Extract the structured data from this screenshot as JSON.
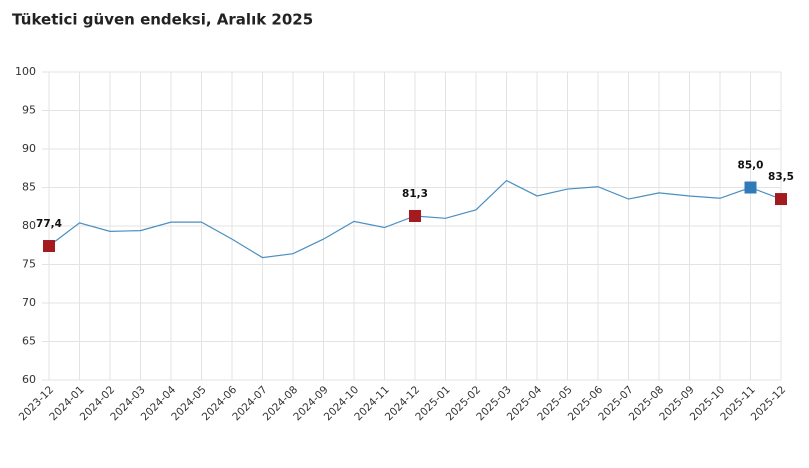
{
  "chart_data": {
    "type": "line",
    "title": "Tüketici güven endeksi, Aralık 2025",
    "categories": [
      "2023-12",
      "2024-01",
      "2024-02",
      "2024-03",
      "2024-04",
      "2024-05",
      "2024-06",
      "2024-07",
      "2024-08",
      "2024-09",
      "2024-10",
      "2024-11",
      "2024-12",
      "2025-01",
      "2025-02",
      "2025-03",
      "2025-04",
      "2025-05",
      "2025-06",
      "2025-07",
      "2025-08",
      "2025-09",
      "2025-10",
      "2025-11",
      "2025-12"
    ],
    "series": [
      {
        "color": "#4a8fc1",
        "values": [
          77.4,
          80.4,
          79.3,
          79.4,
          80.5,
          80.5,
          78.3,
          75.9,
          76.4,
          78.3,
          80.6,
          79.8,
          81.3,
          81.0,
          82.1,
          85.9,
          83.9,
          84.8,
          85.1,
          83.5,
          84.3,
          83.9,
          83.6,
          85.0,
          83.5
        ],
        "value_labels": [
          "77,4",
          null,
          null,
          null,
          null,
          null,
          null,
          null,
          null,
          null,
          null,
          null,
          "81,3",
          null,
          null,
          null,
          null,
          null,
          null,
          null,
          null,
          null,
          null,
          "85,0",
          "83,5"
        ],
        "marker_colors": [
          "#a31b1f",
          null,
          null,
          null,
          null,
          null,
          null,
          null,
          null,
          null,
          null,
          null,
          "#a31b1f",
          null,
          null,
          null,
          null,
          null,
          null,
          null,
          null,
          null,
          null,
          "#2f7ab9",
          "#a31b1f"
        ]
      }
    ],
    "ylim": [
      60,
      100
    ],
    "yticks": [
      60,
      65,
      70,
      75,
      80,
      85,
      90,
      95,
      100
    ],
    "grid": true
  }
}
